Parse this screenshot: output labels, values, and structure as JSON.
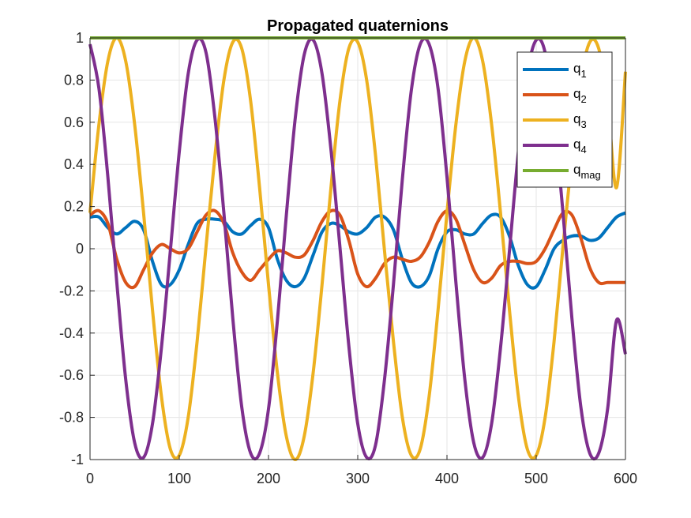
{
  "chart_data": {
    "type": "line",
    "title": "Propagated quaternions",
    "xlabel": "",
    "ylabel": "",
    "xlim": [
      0,
      600
    ],
    "ylim": [
      -1,
      1
    ],
    "xticks": [
      "0",
      "100",
      "200",
      "300",
      "400",
      "500",
      "600"
    ],
    "yticks": [
      "-1",
      "-0.8",
      "-0.6",
      "-0.4",
      "-0.2",
      "0",
      "0.2",
      "0.4",
      "0.6",
      "0.8",
      "1"
    ],
    "grid": true,
    "legend_location": "top-right",
    "colors": {
      "q1": "#0072BD",
      "q2": "#D95319",
      "q3": "#EDB120",
      "q4": "#7E2F8E",
      "qmag": "#77AC30"
    },
    "x": [
      0,
      10,
      20,
      30,
      40,
      50,
      60,
      70,
      80,
      90,
      100,
      110,
      120,
      130,
      140,
      150,
      160,
      170,
      180,
      190,
      200,
      210,
      220,
      230,
      240,
      250,
      260,
      270,
      280,
      290,
      300,
      310,
      320,
      330,
      340,
      350,
      360,
      370,
      380,
      390,
      400,
      410,
      420,
      430,
      440,
      450,
      460,
      470,
      480,
      490,
      500,
      510,
      520,
      530,
      540,
      550,
      560,
      570,
      580,
      590,
      600
    ],
    "series": [
      {
        "key": "q1",
        "label_main": "q",
        "label_sub": "1",
        "values": [
          0.15,
          0.15,
          0.1,
          0.07,
          0.1,
          0.13,
          0.09,
          -0.06,
          -0.17,
          -0.17,
          -0.1,
          0.02,
          0.12,
          0.14,
          0.14,
          0.13,
          0.08,
          0.07,
          0.11,
          0.14,
          0.1,
          -0.05,
          -0.15,
          -0.18,
          -0.14,
          -0.03,
          0.08,
          0.12,
          0.11,
          0.08,
          0.07,
          0.1,
          0.15,
          0.15,
          0.09,
          -0.05,
          -0.16,
          -0.18,
          -0.13,
          0.0,
          0.08,
          0.09,
          0.07,
          0.07,
          0.12,
          0.16,
          0.15,
          0.06,
          -0.08,
          -0.17,
          -0.18,
          -0.1,
          0.0,
          0.04,
          0.06,
          0.06,
          0.04,
          0.05,
          0.1,
          0.15,
          0.17
        ]
      },
      {
        "key": "q2",
        "label_main": "q",
        "label_sub": "2",
        "values": [
          0.16,
          0.18,
          0.12,
          -0.05,
          -0.16,
          -0.18,
          -0.1,
          -0.02,
          0.02,
          0.0,
          -0.02,
          0.0,
          0.08,
          0.16,
          0.18,
          0.12,
          -0.02,
          -0.11,
          -0.15,
          -0.1,
          -0.05,
          -0.01,
          -0.02,
          -0.04,
          -0.03,
          0.04,
          0.13,
          0.18,
          0.16,
          0.04,
          -0.12,
          -0.18,
          -0.14,
          -0.07,
          -0.04,
          -0.05,
          -0.06,
          -0.04,
          0.03,
          0.13,
          0.18,
          0.14,
          0.02,
          -0.1,
          -0.16,
          -0.14,
          -0.08,
          -0.06,
          -0.06,
          -0.07,
          -0.06,
          0.0,
          0.09,
          0.17,
          0.16,
          0.05,
          -0.09,
          -0.16,
          -0.16,
          -0.16,
          -0.16
        ]
      },
      {
        "key": "q3",
        "label_main": "q",
        "label_sub": "3",
        "values": [
          0.17,
          0.59,
          0.89,
          1.0,
          0.89,
          0.59,
          0.17,
          -0.29,
          -0.7,
          -0.95,
          -0.98,
          -0.8,
          -0.44,
          0.01,
          0.44,
          0.8,
          0.98,
          0.95,
          0.7,
          0.29,
          -0.17,
          -0.59,
          -0.89,
          -1.0,
          -0.89,
          -0.59,
          -0.17,
          0.29,
          0.7,
          0.95,
          0.98,
          0.8,
          0.44,
          -0.01,
          -0.44,
          -0.8,
          -0.98,
          -0.95,
          -0.7,
          -0.29,
          0.17,
          0.59,
          0.89,
          1.0,
          0.89,
          0.59,
          0.17,
          -0.29,
          -0.7,
          -0.95,
          -0.98,
          -0.8,
          -0.44,
          0.01,
          0.44,
          0.8,
          0.98,
          0.95,
          0.7,
          0.29,
          0.84
        ]
      },
      {
        "key": "q4",
        "label_main": "q",
        "label_sub": "4",
        "values": [
          0.97,
          0.76,
          0.34,
          -0.16,
          -0.62,
          -0.92,
          -0.99,
          -0.83,
          -0.47,
          -0.01,
          0.46,
          0.83,
          0.99,
          0.93,
          0.62,
          0.17,
          -0.33,
          -0.75,
          -0.97,
          -0.97,
          -0.76,
          -0.34,
          0.16,
          0.62,
          0.92,
          0.99,
          0.83,
          0.47,
          0.01,
          -0.46,
          -0.83,
          -0.99,
          -0.93,
          -0.62,
          -0.17,
          0.33,
          0.75,
          0.97,
          0.97,
          0.76,
          0.34,
          -0.16,
          -0.62,
          -0.92,
          -0.99,
          -0.83,
          -0.47,
          -0.01,
          0.46,
          0.83,
          0.99,
          0.93,
          0.62,
          0.17,
          -0.33,
          -0.75,
          -0.97,
          -0.97,
          -0.76,
          -0.34,
          -0.5
        ]
      },
      {
        "key": "qmag",
        "label_main": "q",
        "label_sub": "mag",
        "values": [
          1,
          1,
          1,
          1,
          1,
          1,
          1,
          1,
          1,
          1,
          1,
          1,
          1,
          1,
          1,
          1,
          1,
          1,
          1,
          1,
          1,
          1,
          1,
          1,
          1,
          1,
          1,
          1,
          1,
          1,
          1,
          1,
          1,
          1,
          1,
          1,
          1,
          1,
          1,
          1,
          1,
          1,
          1,
          1,
          1,
          1,
          1,
          1,
          1,
          1,
          1,
          1,
          1,
          1,
          1,
          1,
          1,
          1,
          1,
          1,
          1
        ]
      }
    ]
  }
}
